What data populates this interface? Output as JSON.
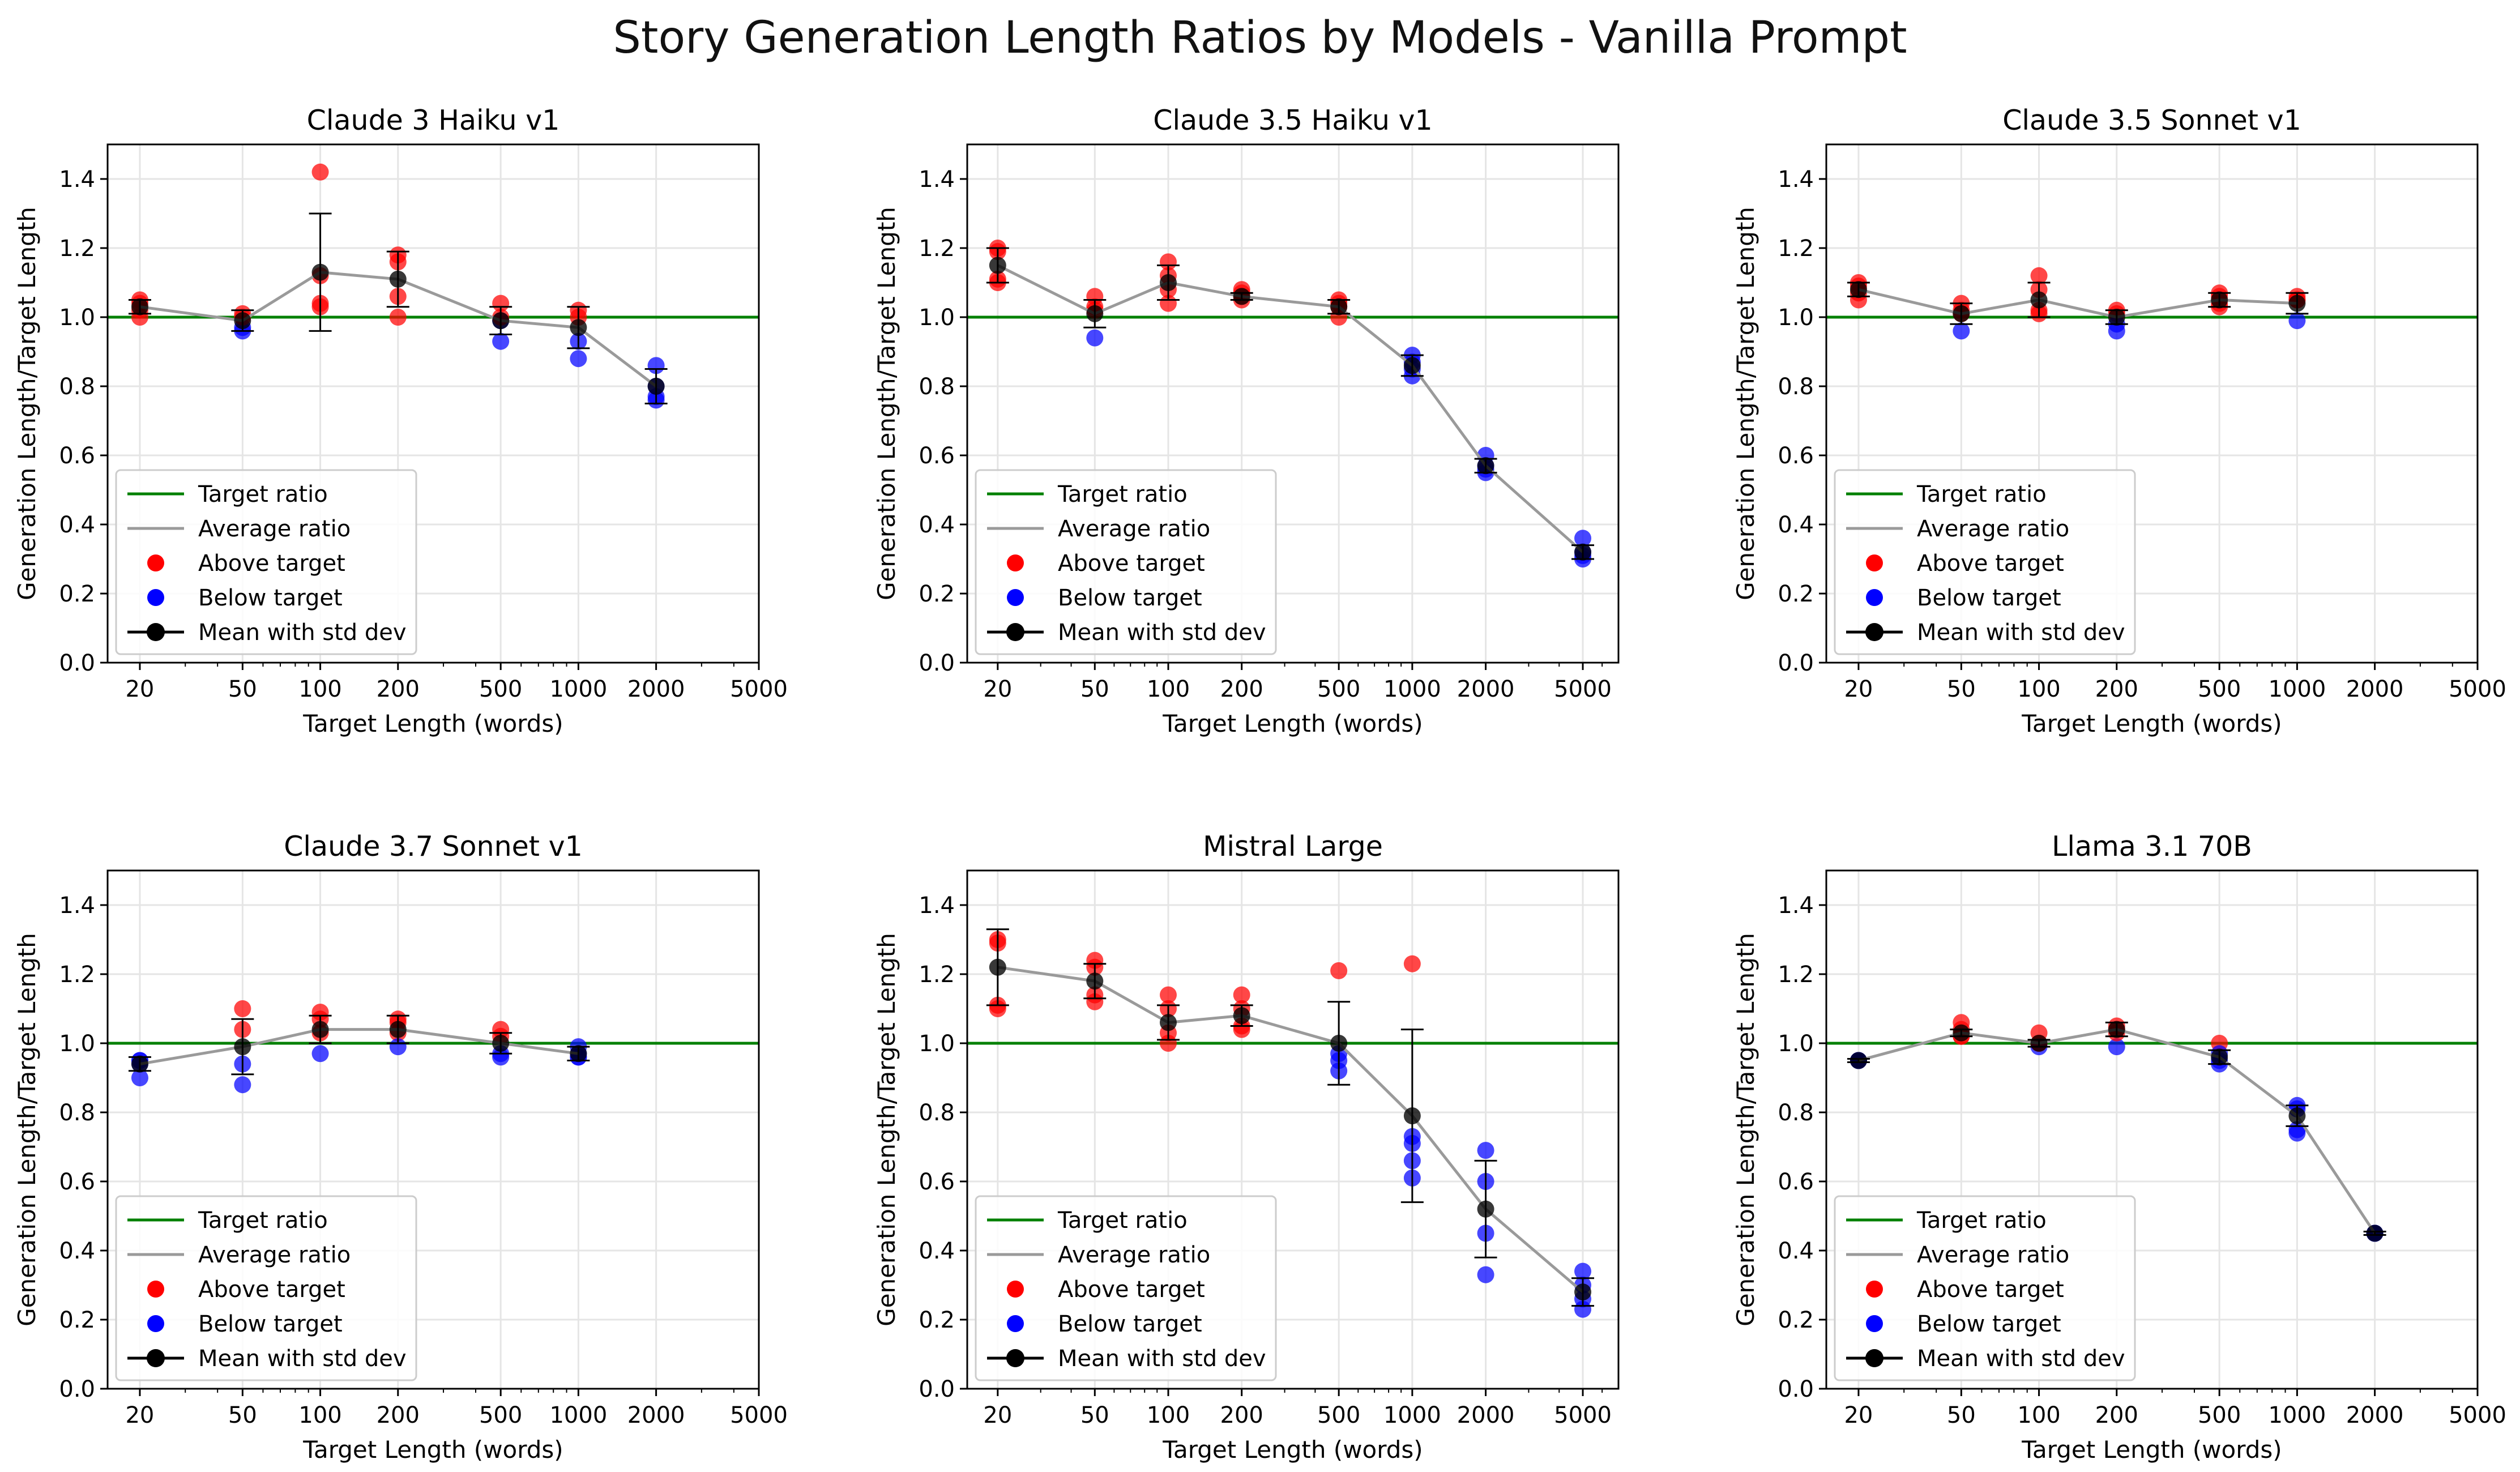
{
  "figure_title": "Story Generation Length Ratios by Models - Vanilla Prompt",
  "colors": {
    "target": "#008000",
    "average": "#9a9a9a",
    "above": "#ff0000",
    "below": "#0000ff",
    "mean": "#000000",
    "grid": "#e5e5e5"
  },
  "legend_labels": [
    "Target ratio",
    "Average ratio",
    "Above target",
    "Below target",
    "Mean with std dev"
  ],
  "chart_data": [
    {
      "type": "scatter",
      "title": "Claude 3 Haiku v1",
      "xlabel": "Target Length (words)",
      "ylabel": "Generation Length/Target Length",
      "xscale": "log",
      "xlim": [
        15,
        5000
      ],
      "ylim": [
        0,
        1.5
      ],
      "xticks": [
        20,
        50,
        100,
        200,
        500,
        1000,
        2000,
        5000
      ],
      "yticks": [
        0.0,
        0.2,
        0.4,
        0.6,
        0.8,
        1.0,
        1.2,
        1.4
      ],
      "target_ratio": 1.0,
      "legend_position": "lower-left",
      "mean": {
        "x": [
          20,
          50,
          100,
          200,
          500,
          1000,
          2000
        ],
        "y": [
          1.03,
          0.99,
          1.13,
          1.11,
          0.99,
          0.97,
          0.8
        ],
        "std": [
          0.02,
          0.03,
          0.17,
          0.08,
          0.04,
          0.06,
          0.05
        ]
      },
      "points": [
        [
          20,
          1.05
        ],
        [
          20,
          1.04
        ],
        [
          20,
          1.0
        ],
        [
          20,
          1.02
        ],
        [
          50,
          1.01
        ],
        [
          50,
          0.97
        ],
        [
          50,
          0.96
        ],
        [
          50,
          1.0
        ],
        [
          100,
          1.42
        ],
        [
          100,
          1.04
        ],
        [
          100,
          1.03
        ],
        [
          100,
          1.12
        ],
        [
          200,
          1.18
        ],
        [
          200,
          1.16
        ],
        [
          200,
          1.06
        ],
        [
          200,
          1.0
        ],
        [
          500,
          1.04
        ],
        [
          500,
          0.99
        ],
        [
          500,
          0.93
        ],
        [
          500,
          1.0
        ],
        [
          1000,
          1.02
        ],
        [
          1000,
          0.93
        ],
        [
          1000,
          0.88
        ],
        [
          1000,
          1.0
        ],
        [
          2000,
          0.86
        ],
        [
          2000,
          0.8
        ],
        [
          2000,
          0.77
        ],
        [
          2000,
          0.76
        ]
      ]
    },
    {
      "type": "scatter",
      "title": "Claude 3.5 Haiku v1",
      "xlabel": "Target Length (words)",
      "ylabel": "Generation Length/Target Length",
      "xscale": "log",
      "xlim": [
        15,
        7000
      ],
      "ylim": [
        0,
        1.5
      ],
      "xticks": [
        20,
        50,
        100,
        200,
        500,
        1000,
        2000,
        5000
      ],
      "yticks": [
        0.0,
        0.2,
        0.4,
        0.6,
        0.8,
        1.0,
        1.2,
        1.4
      ],
      "target_ratio": 1.0,
      "legend_position": "lower-left",
      "mean": {
        "x": [
          20,
          50,
          100,
          200,
          500,
          1000,
          2000,
          5000
        ],
        "y": [
          1.15,
          1.01,
          1.1,
          1.06,
          1.03,
          0.86,
          0.57,
          0.32
        ],
        "std": [
          0.05,
          0.04,
          0.05,
          0.01,
          0.02,
          0.03,
          0.02,
          0.02
        ]
      },
      "points": [
        [
          20,
          1.2
        ],
        [
          20,
          1.19
        ],
        [
          20,
          1.1
        ],
        [
          20,
          1.11
        ],
        [
          50,
          1.06
        ],
        [
          50,
          1.02
        ],
        [
          50,
          1.03
        ],
        [
          50,
          0.94
        ],
        [
          100,
          1.16
        ],
        [
          100,
          1.12
        ],
        [
          100,
          1.04
        ],
        [
          100,
          1.08
        ],
        [
          200,
          1.08
        ],
        [
          200,
          1.06
        ],
        [
          200,
          1.05
        ],
        [
          200,
          1.07
        ],
        [
          500,
          1.05
        ],
        [
          500,
          1.04
        ],
        [
          500,
          1.0
        ],
        [
          500,
          1.03
        ],
        [
          1000,
          0.89
        ],
        [
          1000,
          0.87
        ],
        [
          1000,
          0.83
        ],
        [
          1000,
          0.85
        ],
        [
          2000,
          0.6
        ],
        [
          2000,
          0.57
        ],
        [
          2000,
          0.56
        ],
        [
          2000,
          0.55
        ],
        [
          5000,
          0.36
        ],
        [
          5000,
          0.32
        ],
        [
          5000,
          0.3
        ],
        [
          5000,
          0.31
        ]
      ]
    },
    {
      "type": "scatter",
      "title": "Claude 3.5 Sonnet v1",
      "xlabel": "Target Length (words)",
      "ylabel": "Generation Length/Target Length",
      "xscale": "log",
      "xlim": [
        15,
        5000
      ],
      "ylim": [
        0,
        1.5
      ],
      "xticks": [
        20,
        50,
        100,
        200,
        500,
        1000,
        2000,
        5000
      ],
      "yticks": [
        0.0,
        0.2,
        0.4,
        0.6,
        0.8,
        1.0,
        1.2,
        1.4
      ],
      "target_ratio": 1.0,
      "legend_position": "lower-left",
      "mean": {
        "x": [
          20,
          50,
          100,
          200,
          500,
          1000
        ],
        "y": [
          1.08,
          1.01,
          1.05,
          1.0,
          1.05,
          1.04
        ],
        "std": [
          0.02,
          0.03,
          0.05,
          0.02,
          0.02,
          0.03
        ]
      },
      "points": [
        [
          20,
          1.1
        ],
        [
          20,
          1.09
        ],
        [
          20,
          1.05
        ],
        [
          20,
          1.07
        ],
        [
          50,
          1.04
        ],
        [
          50,
          1.02
        ],
        [
          50,
          0.96
        ],
        [
          50,
          1.01
        ],
        [
          100,
          1.12
        ],
        [
          100,
          1.08
        ],
        [
          100,
          1.01
        ],
        [
          100,
          1.02
        ],
        [
          200,
          1.02
        ],
        [
          200,
          1.01
        ],
        [
          200,
          0.96
        ],
        [
          200,
          0.98
        ],
        [
          500,
          1.07
        ],
        [
          500,
          1.06
        ],
        [
          500,
          1.03
        ],
        [
          500,
          1.04
        ],
        [
          1000,
          1.06
        ],
        [
          1000,
          1.05
        ],
        [
          1000,
          0.99
        ],
        [
          1000,
          1.05
        ]
      ]
    },
    {
      "type": "scatter",
      "title": "Claude 3.7 Sonnet v1",
      "xlabel": "Target Length (words)",
      "ylabel": "Generation Length/Target Length",
      "xscale": "log",
      "xlim": [
        15,
        5000
      ],
      "ylim": [
        0,
        1.5
      ],
      "xticks": [
        20,
        50,
        100,
        200,
        500,
        1000,
        2000,
        5000
      ],
      "yticks": [
        0.0,
        0.2,
        0.4,
        0.6,
        0.8,
        1.0,
        1.2,
        1.4
      ],
      "target_ratio": 1.0,
      "legend_position": "lower-left",
      "mean": {
        "x": [
          20,
          50,
          100,
          200,
          500,
          1000
        ],
        "y": [
          0.94,
          0.99,
          1.04,
          1.04,
          1.0,
          0.97
        ],
        "std": [
          0.02,
          0.08,
          0.04,
          0.04,
          0.03,
          0.02
        ]
      },
      "points": [
        [
          20,
          0.95
        ],
        [
          20,
          0.94
        ],
        [
          20,
          0.9
        ],
        [
          20,
          0.95
        ],
        [
          50,
          1.1
        ],
        [
          50,
          1.04
        ],
        [
          50,
          0.94
        ],
        [
          50,
          0.88
        ],
        [
          100,
          1.09
        ],
        [
          100,
          1.07
        ],
        [
          100,
          1.03
        ],
        [
          100,
          0.97
        ],
        [
          200,
          1.07
        ],
        [
          200,
          1.06
        ],
        [
          200,
          1.03
        ],
        [
          200,
          0.99
        ],
        [
          500,
          1.04
        ],
        [
          500,
          1.02
        ],
        [
          500,
          0.97
        ],
        [
          500,
          0.96
        ],
        [
          1000,
          0.99
        ],
        [
          1000,
          0.97
        ],
        [
          1000,
          0.96
        ],
        [
          1000,
          0.96
        ]
      ]
    },
    {
      "type": "scatter",
      "title": "Mistral Large",
      "xlabel": "Target Length (words)",
      "ylabel": "Generation Length/Target Length",
      "xscale": "log",
      "xlim": [
        15,
        7000
      ],
      "ylim": [
        0,
        1.5
      ],
      "xticks": [
        20,
        50,
        100,
        200,
        500,
        1000,
        2000,
        5000
      ],
      "yticks": [
        0.0,
        0.2,
        0.4,
        0.6,
        0.8,
        1.0,
        1.2,
        1.4
      ],
      "target_ratio": 1.0,
      "legend_position": "lower-left",
      "mean": {
        "x": [
          20,
          50,
          100,
          200,
          500,
          1000,
          2000,
          5000
        ],
        "y": [
          1.22,
          1.18,
          1.06,
          1.08,
          1.0,
          0.79,
          0.52,
          0.28
        ],
        "std": [
          0.11,
          0.05,
          0.05,
          0.03,
          0.12,
          0.25,
          0.14,
          0.04
        ]
      },
      "points": [
        [
          20,
          1.3
        ],
        [
          20,
          1.29
        ],
        [
          20,
          1.1
        ],
        [
          20,
          1.11
        ],
        [
          50,
          1.24
        ],
        [
          50,
          1.22
        ],
        [
          50,
          1.14
        ],
        [
          50,
          1.12
        ],
        [
          100,
          1.14
        ],
        [
          100,
          1.1
        ],
        [
          100,
          1.03
        ],
        [
          100,
          1.0
        ],
        [
          200,
          1.14
        ],
        [
          200,
          1.1
        ],
        [
          200,
          1.05
        ],
        [
          200,
          1.04
        ],
        [
          500,
          1.21
        ],
        [
          500,
          0.97
        ],
        [
          500,
          0.92
        ],
        [
          500,
          0.95
        ],
        [
          1000,
          1.23
        ],
        [
          1000,
          0.73
        ],
        [
          1000,
          0.71
        ],
        [
          1000,
          0.66
        ],
        [
          1000,
          0.61
        ],
        [
          2000,
          0.69
        ],
        [
          2000,
          0.6
        ],
        [
          2000,
          0.45
        ],
        [
          2000,
          0.33
        ],
        [
          5000,
          0.34
        ],
        [
          5000,
          0.3
        ],
        [
          5000,
          0.26
        ],
        [
          5000,
          0.23
        ]
      ]
    },
    {
      "type": "scatter",
      "title": "Llama 3.1 70B",
      "xlabel": "Target Length (words)",
      "ylabel": "Generation Length/Target Length",
      "xscale": "log",
      "xlim": [
        15,
        5000
      ],
      "ylim": [
        0,
        1.5
      ],
      "xticks": [
        20,
        50,
        100,
        200,
        500,
        1000,
        2000,
        5000
      ],
      "yticks": [
        0.0,
        0.2,
        0.4,
        0.6,
        0.8,
        1.0,
        1.2,
        1.4
      ],
      "target_ratio": 1.0,
      "legend_position": "lower-left",
      "mean": {
        "x": [
          20,
          50,
          100,
          200,
          500,
          1000,
          2000
        ],
        "y": [
          0.95,
          1.03,
          1.0,
          1.04,
          0.96,
          0.79,
          0.45
        ],
        "std": [
          0.005,
          0.01,
          0.01,
          0.02,
          0.02,
          0.03,
          0.005
        ]
      },
      "points": [
        [
          20,
          0.95
        ],
        [
          20,
          0.95
        ],
        [
          20,
          0.95
        ],
        [
          20,
          0.95
        ],
        [
          50,
          1.06
        ],
        [
          50,
          1.04
        ],
        [
          50,
          1.02
        ],
        [
          50,
          1.02
        ],
        [
          100,
          1.03
        ],
        [
          100,
          1.0
        ],
        [
          100,
          0.99
        ],
        [
          100,
          1.0
        ],
        [
          200,
          1.05
        ],
        [
          200,
          1.04
        ],
        [
          200,
          0.99
        ],
        [
          200,
          1.03
        ],
        [
          500,
          1.0
        ],
        [
          500,
          0.95
        ],
        [
          500,
          0.94
        ],
        [
          500,
          0.97
        ],
        [
          1000,
          0.82
        ],
        [
          1000,
          0.81
        ],
        [
          1000,
          0.75
        ],
        [
          1000,
          0.74
        ],
        [
          2000,
          0.45
        ],
        [
          2000,
          0.45
        ],
        [
          2000,
          0.45
        ],
        [
          2000,
          0.45
        ]
      ]
    }
  ]
}
